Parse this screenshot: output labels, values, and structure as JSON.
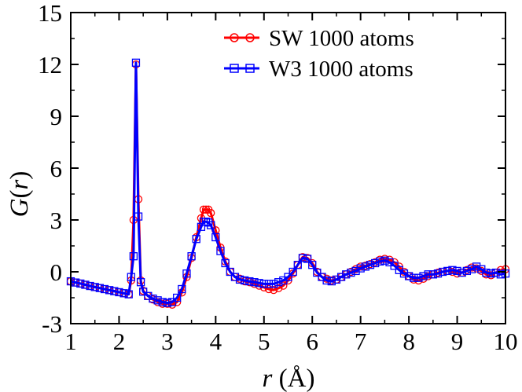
{
  "chart_data": {
    "type": "line",
    "xlabel_main": "r",
    "xlabel_unit": " (Å)",
    "ylabel_main": "G",
    "ylabel_open": "(",
    "ylabel_var": "r",
    "ylabel_close": ")",
    "xlim": [
      1,
      10
    ],
    "ylim": [
      -3,
      15
    ],
    "xticks": [
      1,
      2,
      3,
      4,
      5,
      6,
      7,
      8,
      9,
      10
    ],
    "xtick_labels": [
      "1",
      "2",
      "3",
      "4",
      "5",
      "6",
      "7",
      "8",
      "9",
      "10"
    ],
    "yticks": [
      -3,
      0,
      3,
      6,
      9,
      12,
      15
    ],
    "ytick_labels": [
      "-3",
      "0",
      "3",
      "6",
      "9",
      "12",
      "15"
    ],
    "legend_position": "top-right",
    "series": [
      {
        "name": "SW 1000 atoms",
        "color": "#ff0000",
        "marker": "circle",
        "x": [
          1.0,
          1.1,
          1.2,
          1.3,
          1.4,
          1.5,
          1.6,
          1.7,
          1.8,
          1.9,
          2.0,
          2.1,
          2.2,
          2.25,
          2.3,
          2.35,
          2.4,
          2.45,
          2.5,
          2.6,
          2.7,
          2.8,
          2.9,
          3.0,
          3.1,
          3.2,
          3.3,
          3.4,
          3.5,
          3.6,
          3.7,
          3.75,
          3.8,
          3.85,
          3.9,
          4.0,
          4.1,
          4.2,
          4.3,
          4.4,
          4.5,
          4.6,
          4.7,
          4.8,
          4.9,
          5.0,
          5.1,
          5.2,
          5.3,
          5.4,
          5.5,
          5.6,
          5.7,
          5.8,
          5.9,
          6.0,
          6.1,
          6.2,
          6.3,
          6.4,
          6.5,
          6.6,
          6.7,
          6.8,
          6.9,
          7.0,
          7.1,
          7.2,
          7.3,
          7.4,
          7.5,
          7.6,
          7.7,
          7.8,
          7.9,
          8.0,
          8.1,
          8.2,
          8.3,
          8.4,
          8.5,
          8.6,
          8.7,
          8.8,
          8.9,
          9.0,
          9.1,
          9.2,
          9.3,
          9.4,
          9.5,
          9.6,
          9.7,
          9.8,
          9.9,
          10.0
        ],
        "y": [
          -0.55,
          -0.62,
          -0.68,
          -0.75,
          -0.82,
          -0.88,
          -0.94,
          -1.0,
          -1.06,
          -1.12,
          -1.18,
          -1.24,
          -1.3,
          -0.5,
          3.0,
          12.0,
          4.2,
          -0.5,
          -1.1,
          -1.4,
          -1.6,
          -1.75,
          -1.85,
          -1.85,
          -1.9,
          -1.75,
          -1.2,
          -0.3,
          0.8,
          2.0,
          3.1,
          3.6,
          3.6,
          3.6,
          3.4,
          2.4,
          1.4,
          0.6,
          0.0,
          -0.3,
          -0.4,
          -0.55,
          -0.6,
          -0.7,
          -0.8,
          -0.9,
          -1.0,
          -1.05,
          -0.95,
          -0.8,
          -0.5,
          -0.1,
          0.4,
          0.85,
          0.8,
          0.5,
          0.0,
          -0.3,
          -0.4,
          -0.5,
          -0.45,
          -0.3,
          -0.15,
          0.0,
          0.15,
          0.3,
          0.35,
          0.45,
          0.55,
          0.7,
          0.75,
          0.7,
          0.55,
          0.3,
          0.0,
          -0.25,
          -0.45,
          -0.5,
          -0.4,
          -0.25,
          -0.15,
          -0.05,
          0.0,
          0.05,
          0.0,
          -0.1,
          -0.05,
          0.1,
          0.25,
          0.2,
          0.05,
          -0.15,
          -0.2,
          -0.05,
          0.1,
          0.15
        ]
      },
      {
        "name": "W3 1000 atoms",
        "color": "#0000ff",
        "marker": "square",
        "x": [
          1.0,
          1.1,
          1.2,
          1.3,
          1.4,
          1.5,
          1.6,
          1.7,
          1.8,
          1.9,
          2.0,
          2.1,
          2.2,
          2.25,
          2.3,
          2.35,
          2.4,
          2.45,
          2.5,
          2.6,
          2.7,
          2.8,
          2.9,
          3.0,
          3.1,
          3.2,
          3.3,
          3.4,
          3.5,
          3.6,
          3.7,
          3.75,
          3.8,
          3.85,
          3.9,
          4.0,
          4.1,
          4.2,
          4.3,
          4.4,
          4.5,
          4.6,
          4.7,
          4.8,
          4.9,
          5.0,
          5.1,
          5.2,
          5.3,
          5.4,
          5.5,
          5.6,
          5.7,
          5.8,
          5.9,
          6.0,
          6.1,
          6.2,
          6.3,
          6.4,
          6.5,
          6.6,
          6.7,
          6.8,
          6.9,
          7.0,
          7.1,
          7.2,
          7.3,
          7.4,
          7.5,
          7.6,
          7.7,
          7.8,
          7.9,
          8.0,
          8.1,
          8.2,
          8.3,
          8.4,
          8.5,
          8.6,
          8.7,
          8.8,
          8.9,
          9.0,
          9.1,
          9.2,
          9.3,
          9.4,
          9.5,
          9.6,
          9.7,
          9.8,
          9.9,
          10.0
        ],
        "y": [
          -0.55,
          -0.62,
          -0.68,
          -0.75,
          -0.82,
          -0.88,
          -0.94,
          -1.0,
          -1.06,
          -1.12,
          -1.18,
          -1.24,
          -1.3,
          -0.3,
          0.9,
          12.1,
          3.2,
          -0.6,
          -1.15,
          -1.4,
          -1.55,
          -1.65,
          -1.75,
          -1.8,
          -1.75,
          -1.5,
          -1.0,
          -0.1,
          0.9,
          1.9,
          2.6,
          2.9,
          2.9,
          2.85,
          2.7,
          2.0,
          1.2,
          0.5,
          0.0,
          -0.3,
          -0.45,
          -0.5,
          -0.55,
          -0.6,
          -0.65,
          -0.7,
          -0.7,
          -0.7,
          -0.6,
          -0.5,
          -0.3,
          0.0,
          0.4,
          0.8,
          0.75,
          0.4,
          -0.05,
          -0.3,
          -0.5,
          -0.55,
          -0.45,
          -0.3,
          -0.15,
          -0.05,
          0.05,
          0.2,
          0.3,
          0.4,
          0.5,
          0.6,
          0.65,
          0.55,
          0.35,
          0.1,
          -0.1,
          -0.25,
          -0.35,
          -0.35,
          -0.25,
          -0.15,
          -0.15,
          -0.1,
          0.0,
          0.05,
          0.1,
          0.05,
          -0.05,
          0.05,
          0.15,
          0.3,
          0.15,
          -0.05,
          -0.1,
          -0.05,
          -0.15,
          -0.1
        ]
      }
    ]
  }
}
